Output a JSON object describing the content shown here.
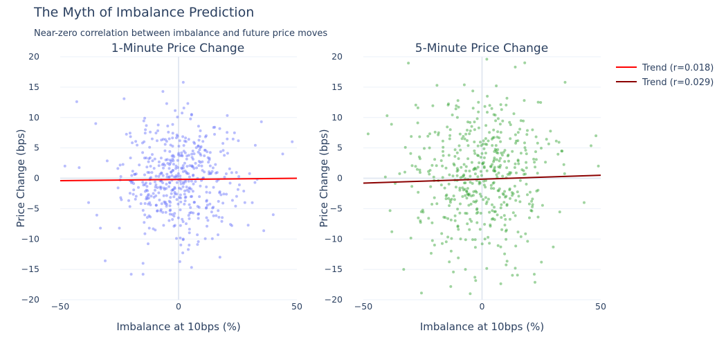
{
  "title": "The Myth of Imbalance Prediction",
  "subtitle": "Near-zero correlation between imbalance and future price moves",
  "legend": [
    {
      "label": "Trend (r=0.018)",
      "color": "#ff0000"
    },
    {
      "label": "Trend (r=0.029)",
      "color": "#8b0000"
    }
  ],
  "chart_data": [
    {
      "type": "scatter",
      "title": "1-Minute Price Change",
      "xlabel": "Imbalance at 10bps (%)",
      "ylabel": "Price Change (bps)",
      "xlim": [
        -50,
        50
      ],
      "ylim": [
        -20,
        20
      ],
      "x_ticks": [
        "−50",
        "0",
        "50"
      ],
      "y_ticks": [
        "20",
        "15",
        "10",
        "5",
        "0",
        "−5",
        "−10",
        "−15",
        "−20"
      ],
      "grid": true,
      "point_color": "#636efa",
      "point_count": 500,
      "trend": {
        "name": "Trend (r=0.018)",
        "color": "#ff0000",
        "x": [
          -50,
          50
        ],
        "y": [
          -0.4,
          0.0
        ]
      },
      "sample_points": [
        [
          -43,
          12.6
        ],
        [
          -5,
          12.3
        ],
        [
          2,
          15.8
        ],
        [
          -35,
          9
        ],
        [
          35,
          9.3
        ],
        [
          -48,
          2
        ],
        [
          48,
          6
        ],
        [
          -38,
          -4
        ],
        [
          -33,
          -8.2
        ],
        [
          -31,
          -13.6
        ],
        [
          -20,
          -15.8
        ],
        [
          -15,
          -14
        ],
        [
          -15,
          -15.8
        ],
        [
          2,
          -10
        ],
        [
          8,
          -10.9
        ],
        [
          12,
          -7.9
        ],
        [
          40,
          -6
        ],
        [
          -25,
          -8.2
        ],
        [
          28,
          -4
        ],
        [
          44,
          4
        ]
      ]
    },
    {
      "type": "scatter",
      "title": "5-Minute Price Change",
      "xlabel": "Imbalance at 10bps (%)",
      "ylabel": "Price Change (bps)",
      "xlim": [
        -50,
        50
      ],
      "ylim": [
        -20,
        20
      ],
      "x_ticks": [
        "−50",
        "0",
        "50"
      ],
      "y_ticks": [
        "20",
        "15",
        "10",
        "5",
        "0",
        "−5",
        "−10",
        "−15",
        "−20"
      ],
      "grid": true,
      "point_color": "#2ca02c",
      "point_count": 500,
      "trend": {
        "name": "Trend (r=0.029)",
        "color": "#8b0000",
        "x": [
          -50,
          50
        ],
        "y": [
          -0.8,
          0.5
        ]
      },
      "sample_points": [
        [
          2,
          19.6
        ],
        [
          18,
          19
        ],
        [
          14,
          18.3
        ],
        [
          35,
          15.8
        ],
        [
          -27,
          11.6
        ],
        [
          -40,
          10.3
        ],
        [
          -48,
          7.3
        ],
        [
          -38,
          -8.8
        ],
        [
          -33,
          -15
        ],
        [
          -26,
          -7
        ],
        [
          -20,
          -11
        ],
        [
          -13,
          -12
        ],
        [
          -10,
          -13.1
        ],
        [
          -7,
          -15
        ],
        [
          -3,
          -16.3
        ],
        [
          -5,
          -19
        ],
        [
          14,
          -14.8
        ],
        [
          22,
          -15.8
        ],
        [
          25,
          -13.8
        ],
        [
          30,
          -11.3
        ],
        [
          43,
          -4
        ],
        [
          48,
          7
        ],
        [
          49,
          2
        ]
      ]
    }
  ]
}
